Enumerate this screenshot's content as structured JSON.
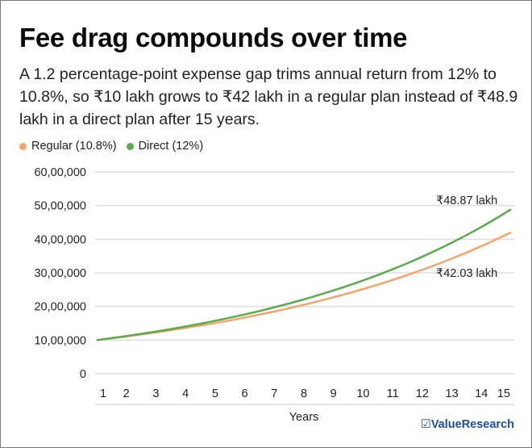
{
  "header": {
    "title": "Fee drag compounds over time",
    "subtitle": "A 1.2 percentage-point expense gap trims annual return from 12% to 10.8%, so ₹10 lakh grows to ₹42 lakh in a regular plan instead of ₹48.9 lakh in a direct plan after 15 years."
  },
  "brand": {
    "icon": "checkbox-icon",
    "glyph": "☑",
    "name": "ValueResearch"
  },
  "chart_data": {
    "type": "line",
    "title": "Fee drag compounds over time",
    "xlabel": "Years",
    "ylabel": "",
    "x": [
      1,
      2,
      3,
      4,
      5,
      6,
      7,
      8,
      9,
      10,
      11,
      12,
      13,
      14,
      15
    ],
    "ylim": [
      0,
      6000000
    ],
    "yticks": [
      0,
      1000000,
      2000000,
      3000000,
      4000000,
      5000000,
      6000000
    ],
    "ytick_labels": [
      "0",
      "10,00,000",
      "20,00,000",
      "30,00,000",
      "40,00,000",
      "50,00,000",
      "60,00,000"
    ],
    "grid": true,
    "legend_placement": "top-left",
    "series": [
      {
        "name": "Regular (10.8%)",
        "color": "#f5a56b",
        "values": [
          1000000,
          1108000,
          1227664,
          1360252,
          1507159,
          1669932,
          1850285,
          2050116,
          2271529,
          2516854,
          2788674,
          3089851,
          3423555,
          3793299,
          4202975
        ],
        "end_label": "₹42.03 lakh"
      },
      {
        "name": "Direct (12%)",
        "color": "#5aac4e",
        "values": [
          1000000,
          1120000,
          1254400,
          1404928,
          1573519,
          1762342,
          1973823,
          2210681,
          2475963,
          2773079,
          3105848,
          3478550,
          3895976,
          4363493,
          4887112
        ],
        "end_label": "₹48.87 lakh"
      }
    ]
  }
}
